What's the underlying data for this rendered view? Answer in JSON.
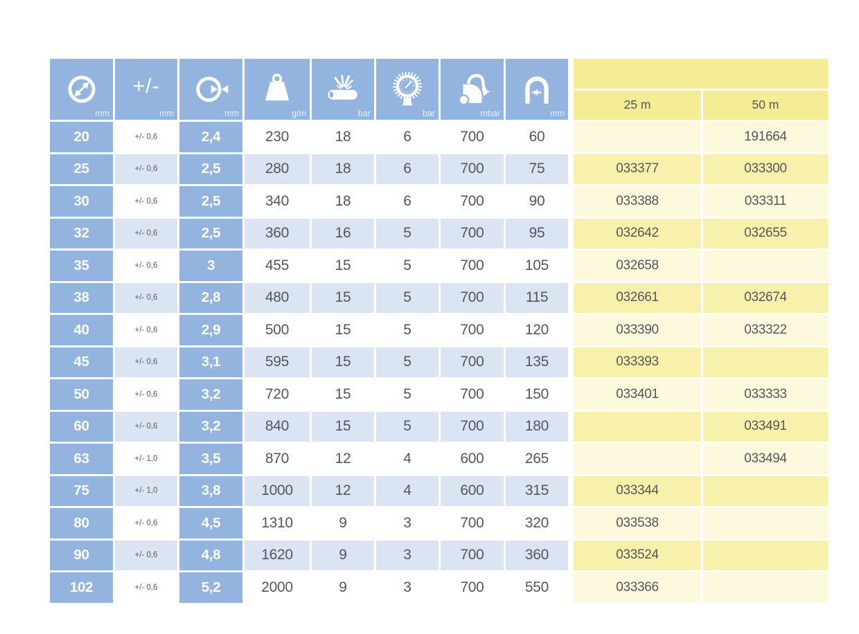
{
  "table": {
    "header": {
      "columns": [
        {
          "icon": "inner-diameter-icon",
          "unit": "mm"
        },
        {
          "label": "+/-",
          "unit": "mm"
        },
        {
          "icon": "wall-thickness-icon",
          "unit": "mm"
        },
        {
          "icon": "weight-per-meter-icon",
          "unit": "g/m"
        },
        {
          "icon": "burst-pressure-icon",
          "unit": "bar"
        },
        {
          "icon": "working-pressure-icon",
          "unit": "bar"
        },
        {
          "icon": "vacuum-icon",
          "unit": "mbar"
        },
        {
          "icon": "bend-radius-icon",
          "unit": "mm"
        }
      ],
      "length_columns": [
        "25 m",
        "50 m"
      ]
    },
    "rows": [
      {
        "id": "20",
        "tolerance": "+/- 0,6",
        "wall": "2,4",
        "weight": "230",
        "burst": "18",
        "pressure": "6",
        "vacuum": "700",
        "bend": "60",
        "pn25": "",
        "pn50": "191664"
      },
      {
        "id": "25",
        "tolerance": "+/- 0,6",
        "wall": "2,5",
        "weight": "280",
        "burst": "18",
        "pressure": "6",
        "vacuum": "700",
        "bend": "75",
        "pn25": "033377",
        "pn50": "033300"
      },
      {
        "id": "30",
        "tolerance": "+/- 0,6",
        "wall": "2,5",
        "weight": "340",
        "burst": "18",
        "pressure": "6",
        "vacuum": "700",
        "bend": "90",
        "pn25": "033388",
        "pn50": "033311"
      },
      {
        "id": "32",
        "tolerance": "+/- 0,6",
        "wall": "2,5",
        "weight": "360",
        "burst": "16",
        "pressure": "5",
        "vacuum": "700",
        "bend": "95",
        "pn25": "032642",
        "pn50": "032655"
      },
      {
        "id": "35",
        "tolerance": "+/- 0,6",
        "wall": "3",
        "weight": "455",
        "burst": "15",
        "pressure": "5",
        "vacuum": "700",
        "bend": "105",
        "pn25": "032658",
        "pn50": ""
      },
      {
        "id": "38",
        "tolerance": "+/- 0,6",
        "wall": "2,8",
        "weight": "480",
        "burst": "15",
        "pressure": "5",
        "vacuum": "700",
        "bend": "115",
        "pn25": "032661",
        "pn50": "032674"
      },
      {
        "id": "40",
        "tolerance": "+/- 0,6",
        "wall": "2,9",
        "weight": "500",
        "burst": "15",
        "pressure": "5",
        "vacuum": "700",
        "bend": "120",
        "pn25": "033390",
        "pn50": "033322"
      },
      {
        "id": "45",
        "tolerance": "+/- 0,6",
        "wall": "3,1",
        "weight": "595",
        "burst": "15",
        "pressure": "5",
        "vacuum": "700",
        "bend": "135",
        "pn25": "033393",
        "pn50": ""
      },
      {
        "id": "50",
        "tolerance": "+/- 0,6",
        "wall": "3,2",
        "weight": "720",
        "burst": "15",
        "pressure": "5",
        "vacuum": "700",
        "bend": "150",
        "pn25": "033401",
        "pn50": "033333"
      },
      {
        "id": "60",
        "tolerance": "+/- 0,6",
        "wall": "3,2",
        "weight": "840",
        "burst": "15",
        "pressure": "5",
        "vacuum": "700",
        "bend": "180",
        "pn25": "",
        "pn50": "033491"
      },
      {
        "id": "63",
        "tolerance": "+/- 1,0",
        "wall": "3,5",
        "weight": "870",
        "burst": "12",
        "pressure": "4",
        "vacuum": "600",
        "bend": "265",
        "pn25": "",
        "pn50": "033494"
      },
      {
        "id": "75",
        "tolerance": "+/- 1,0",
        "wall": "3,8",
        "weight": "1000",
        "burst": "12",
        "pressure": "4",
        "vacuum": "600",
        "bend": "315",
        "pn25": "033344",
        "pn50": ""
      },
      {
        "id": "80",
        "tolerance": "+/- 0,6",
        "wall": "4,5",
        "weight": "1310",
        "burst": "9",
        "pressure": "3",
        "vacuum": "700",
        "bend": "320",
        "pn25": "033538",
        "pn50": ""
      },
      {
        "id": "90",
        "tolerance": "+/- 0,6",
        "wall": "4,8",
        "weight": "1620",
        "burst": "9",
        "pressure": "3",
        "vacuum": "700",
        "bend": "360",
        "pn25": "033524",
        "pn50": ""
      },
      {
        "id": "102",
        "tolerance": "+/- 0,6",
        "wall": "5,2",
        "weight": "2000",
        "burst": "9",
        "pressure": "3",
        "vacuum": "700",
        "bend": "550",
        "pn25": "033366",
        "pn50": ""
      }
    ]
  },
  "colors": {
    "header_blue": "#92b4de",
    "row_tint_blue": "#dbe4f3",
    "header_yellow": "#f5ed96",
    "part_number_yellow": "#f8f1ab",
    "part_number_cream": "#fcf9dc",
    "text": "#53565a"
  }
}
